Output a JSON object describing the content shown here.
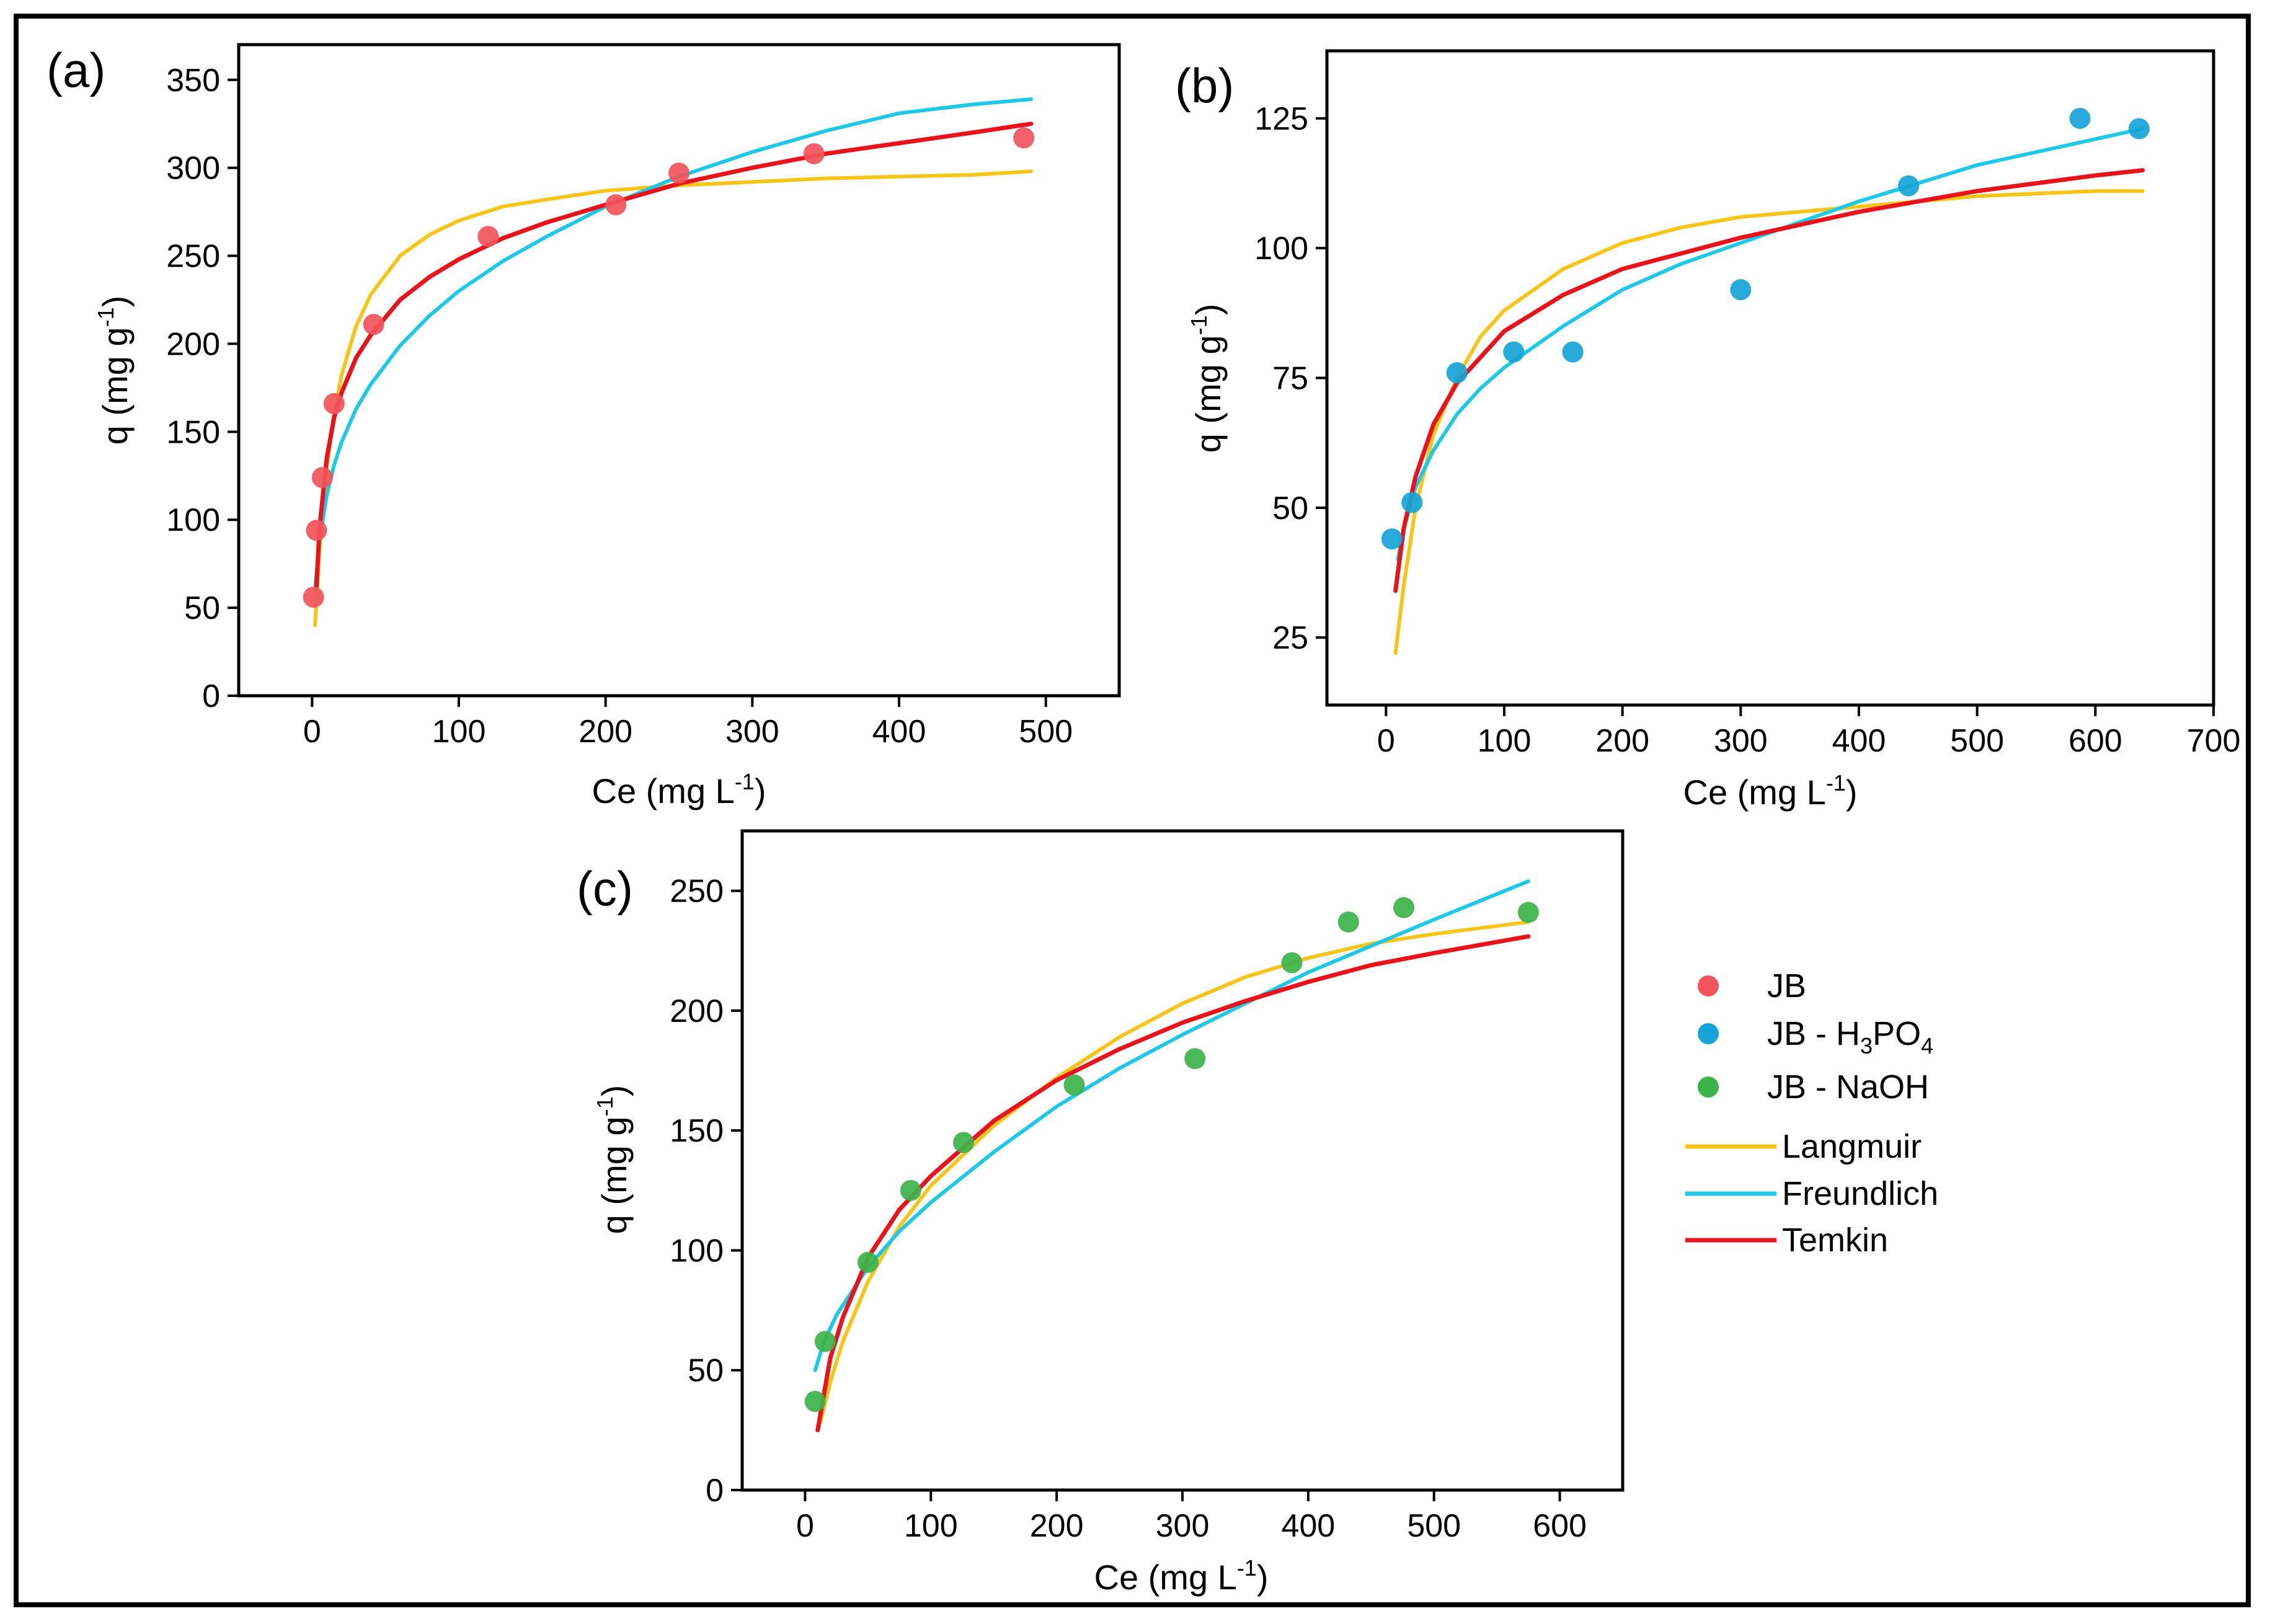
{
  "chart_data": [
    {
      "type": "scatter",
      "panel_label": "(a)",
      "xlabel": "Ce (mg L",
      "xlabel_sup": "-1",
      "xlabel_end": ")",
      "ylabel": "q (mg g",
      "ylabel_sup": "-1",
      "ylabel_end": ")",
      "xlim": [
        -50,
        550
      ],
      "ylim": [
        0,
        370
      ],
      "xticks": [
        0,
        100,
        200,
        300,
        400,
        500
      ],
      "yticks": [
        0,
        50,
        100,
        150,
        200,
        250,
        300,
        350
      ],
      "series": [
        {
          "name": "JB",
          "kind": "points",
          "color": "#f2545b",
          "x": [
            1,
            3,
            7,
            15,
            42,
            120,
            207,
            250,
            342,
            485
          ],
          "y": [
            56,
            94,
            124,
            166,
            211,
            261,
            279,
            297,
            308,
            317
          ]
        },
        {
          "name": "Langmuir",
          "kind": "line",
          "color": "#f5c518",
          "x": [
            2,
            5,
            10,
            15,
            20,
            30,
            40,
            60,
            80,
            100,
            130,
            160,
            200,
            250,
            300,
            350,
            400,
            450,
            490
          ],
          "y": [
            40,
            82,
            130,
            160,
            182,
            210,
            228,
            250,
            262,
            270,
            278,
            282,
            287,
            290,
            292,
            294,
            295,
            296,
            298
          ]
        },
        {
          "name": "Freundlich",
          "kind": "line",
          "color": "#1ec8e6",
          "x": [
            2,
            5,
            10,
            15,
            20,
            30,
            40,
            60,
            80,
            100,
            130,
            160,
            200,
            250,
            300,
            350,
            400,
            450,
            490
          ],
          "y": [
            60,
            88,
            114,
            131,
            144,
            163,
            177,
            199,
            216,
            230,
            247,
            261,
            278,
            295,
            309,
            321,
            331,
            336,
            339
          ]
        },
        {
          "name": "Temkin",
          "kind": "line",
          "color": "#e8141c",
          "x": [
            3,
            5,
            10,
            15,
            20,
            30,
            40,
            60,
            80,
            100,
            130,
            160,
            200,
            250,
            300,
            350,
            400,
            450,
            490
          ],
          "y": [
            62,
            95,
            135,
            158,
            172,
            192,
            205,
            225,
            238,
            248,
            260,
            269,
            279,
            291,
            300,
            308,
            314,
            320,
            325
          ]
        }
      ]
    },
    {
      "type": "scatter",
      "panel_label": "(b)",
      "xlabel": "Ce (mg L",
      "xlabel_sup": "-1",
      "xlabel_end": ")",
      "ylabel": "q (mg g",
      "ylabel_sup": "-1",
      "ylabel_end": ")",
      "xlim": [
        -50,
        700
      ],
      "ylim": [
        12,
        138
      ],
      "xticks": [
        0,
        100,
        200,
        300,
        400,
        500,
        600,
        700
      ],
      "yticks": [
        25,
        50,
        75,
        100,
        125
      ],
      "series": [
        {
          "name": "JB - H3PO4",
          "kind": "points",
          "color": "#16a4d8",
          "x": [
            5,
            22,
            60,
            108,
            158,
            300,
            442,
            587,
            637
          ],
          "y": [
            44,
            51,
            76,
            80,
            80,
            92,
            112,
            125,
            123
          ]
        },
        {
          "name": "Langmuir",
          "kind": "line",
          "color": "#f5c518",
          "x": [
            8,
            15,
            25,
            40,
            60,
            80,
            100,
            150,
            200,
            250,
            300,
            400,
            500,
            600,
            640
          ],
          "y": [
            22,
            35,
            50,
            64,
            75,
            83,
            88,
            96,
            101,
            104,
            106,
            108,
            110,
            111,
            111
          ]
        },
        {
          "name": "Freundlich",
          "kind": "line",
          "color": "#1ec8e6",
          "x": [
            10,
            15,
            25,
            40,
            60,
            80,
            100,
            150,
            200,
            250,
            300,
            400,
            500,
            600,
            640
          ],
          "y": [
            40,
            46,
            54,
            61,
            68,
            73,
            77,
            85,
            92,
            97,
            101,
            109,
            116,
            121,
            123
          ]
        },
        {
          "name": "Temkin",
          "kind": "line",
          "color": "#e8141c",
          "x": [
            8,
            15,
            25,
            40,
            60,
            80,
            100,
            150,
            200,
            250,
            300,
            400,
            500,
            600,
            640
          ],
          "y": [
            34,
            46,
            56,
            66,
            74,
            79,
            84,
            91,
            96,
            99,
            102,
            107,
            111,
            114,
            115
          ]
        }
      ]
    },
    {
      "type": "scatter",
      "panel_label": "(c)",
      "xlabel": "Ce (mg L",
      "xlabel_sup": "-1",
      "xlabel_end": ")",
      "ylabel": "q (mg g",
      "ylabel_sup": "-1",
      "ylabel_end": ")",
      "xlim": [
        -50,
        650
      ],
      "ylim": [
        0,
        275
      ],
      "xticks": [
        0,
        100,
        200,
        300,
        400,
        500,
        600
      ],
      "yticks": [
        0,
        50,
        100,
        150,
        200,
        250
      ],
      "series": [
        {
          "name": "JB - NaOH",
          "kind": "points",
          "color": "#3cb34a",
          "x": [
            8,
            16,
            50,
            84,
            126,
            214,
            310,
            387,
            432,
            476,
            575
          ],
          "y": [
            37,
            62,
            95,
            125,
            145,
            169,
            180,
            220,
            237,
            243,
            241
          ]
        },
        {
          "name": "Langmuir",
          "kind": "line",
          "color": "#f5c518",
          "x": [
            12,
            20,
            30,
            50,
            75,
            100,
            150,
            200,
            250,
            300,
            350,
            400,
            450,
            500,
            575
          ],
          "y": [
            28,
            45,
            62,
            87,
            110,
            127,
            152,
            172,
            189,
            203,
            214,
            222,
            228,
            232,
            237
          ]
        },
        {
          "name": "Freundlich",
          "kind": "line",
          "color": "#1ec8e6",
          "x": [
            8,
            15,
            25,
            50,
            75,
            100,
            150,
            200,
            250,
            300,
            350,
            400,
            450,
            500,
            575
          ],
          "y": [
            50,
            62,
            73,
            93,
            108,
            120,
            141,
            160,
            176,
            190,
            203,
            216,
            227,
            238,
            254
          ]
        },
        {
          "name": "Temkin",
          "kind": "line",
          "color": "#e8141c",
          "x": [
            10,
            20,
            30,
            50,
            75,
            100,
            150,
            200,
            250,
            300,
            350,
            400,
            450,
            500,
            575
          ],
          "y": [
            25,
            55,
            72,
            97,
            117,
            131,
            154,
            171,
            184,
            195,
            204,
            212,
            219,
            224,
            231
          ]
        }
      ]
    }
  ],
  "legend": {
    "items": [
      {
        "kind": "point",
        "color": "#f2545b",
        "label": "JB"
      },
      {
        "kind": "point",
        "color": "#16a4d8",
        "label": "JB - H",
        "sub1": "3",
        "mid": "PO",
        "sub2": "4"
      },
      {
        "kind": "point",
        "color": "#3cb34a",
        "label": "JB - NaOH"
      },
      {
        "kind": "line",
        "color": "#f5c518",
        "label": "Langmuir"
      },
      {
        "kind": "line",
        "color": "#1ec8e6",
        "label": "Freundlich"
      },
      {
        "kind": "line",
        "color": "#e8141c",
        "label": "Temkin"
      }
    ]
  }
}
